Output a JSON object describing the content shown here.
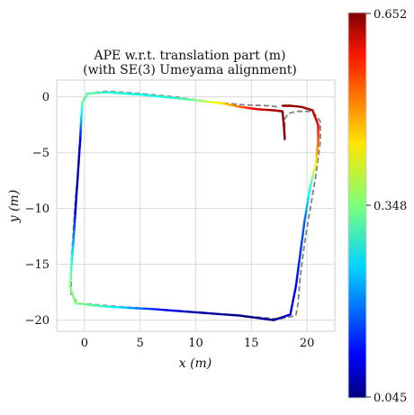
{
  "chart_data": {
    "type": "line",
    "title_line1": "APE w.r.t. translation part (m)",
    "title_line2": "(with SE(3) Umeyama alignment)",
    "xlabel": "x (m)",
    "ylabel": "y (m)",
    "xlim": [
      -2.5,
      22.5
    ],
    "ylim": [
      -21,
      1.5
    ],
    "x_ticks": [
      0,
      5,
      10,
      15,
      20
    ],
    "y_ticks": [
      0,
      -5,
      -10,
      -15,
      -20
    ],
    "x_tick_labels": [
      "0",
      "5",
      "10",
      "15",
      "20"
    ],
    "y_tick_labels": [
      "0",
      "−5",
      "−10",
      "−15",
      "−20"
    ],
    "grid": true,
    "colormap": "jet",
    "colorbar": {
      "min": 0.045,
      "mid": 0.348,
      "max": 0.652,
      "labels": [
        "0.652",
        "0.348",
        "0.045"
      ]
    },
    "reference_style": {
      "color": "#808080",
      "dash": "dashed"
    },
    "reference": [
      [
        18.0,
        -3.5
      ],
      [
        18.0,
        -2.0
      ],
      [
        18.3,
        -1.5
      ],
      [
        19.0,
        -1.3
      ],
      [
        20.5,
        -1.3
      ],
      [
        21.2,
        -2.2
      ],
      [
        21.2,
        -4.0
      ],
      [
        20.8,
        -7.0
      ],
      [
        20.3,
        -10.0
      ],
      [
        19.8,
        -13.0
      ],
      [
        19.4,
        -16.0
      ],
      [
        19.2,
        -18.5
      ],
      [
        19.0,
        -19.6
      ],
      [
        17.5,
        -19.9
      ],
      [
        14.0,
        -19.6
      ],
      [
        10.0,
        -19.3
      ],
      [
        6.0,
        -19.0
      ],
      [
        2.0,
        -18.7
      ],
      [
        -0.5,
        -18.5
      ],
      [
        -1.2,
        -17.8
      ],
      [
        -1.2,
        -15.0
      ],
      [
        -1.0,
        -12.0
      ],
      [
        -0.8,
        -9.0
      ],
      [
        -0.5,
        -6.0
      ],
      [
        -0.3,
        -3.0
      ],
      [
        -0.2,
        -0.5
      ],
      [
        0.2,
        0.3
      ],
      [
        2.0,
        0.5
      ],
      [
        5.0,
        0.3
      ],
      [
        8.0,
        0.0
      ],
      [
        11.0,
        -0.4
      ],
      [
        14.0,
        -0.7
      ],
      [
        16.5,
        -0.8
      ],
      [
        17.5,
        -0.9
      ]
    ],
    "estimate": [
      [
        18.0,
        -3.8,
        0.64
      ],
      [
        17.9,
        -2.3,
        0.64
      ],
      [
        17.8,
        -1.3,
        0.64
      ],
      [
        17.0,
        -1.2,
        0.63
      ],
      [
        15.5,
        -1.1,
        0.6
      ],
      [
        14.0,
        -0.9,
        0.52
      ],
      [
        12.5,
        -0.6,
        0.45
      ],
      [
        10.0,
        -0.3,
        0.35
      ],
      [
        8.0,
        -0.1,
        0.3
      ],
      [
        5.0,
        0.2,
        0.28
      ],
      [
        2.0,
        0.4,
        0.3
      ],
      [
        0.3,
        0.3,
        0.33
      ],
      [
        -0.2,
        -0.5,
        0.33
      ],
      [
        -0.3,
        -2.0,
        0.25
      ],
      [
        -0.4,
        -4.0,
        0.1
      ],
      [
        -0.6,
        -7.0,
        0.06
      ],
      [
        -0.8,
        -10.0,
        0.1
      ],
      [
        -1.0,
        -13.0,
        0.22
      ],
      [
        -1.2,
        -15.5,
        0.32
      ],
      [
        -1.3,
        -17.0,
        0.35
      ],
      [
        -0.8,
        -18.5,
        0.35
      ],
      [
        2.0,
        -18.8,
        0.3
      ],
      [
        6.0,
        -19.0,
        0.15
      ],
      [
        10.0,
        -19.3,
        0.07
      ],
      [
        14.0,
        -19.6,
        0.05
      ],
      [
        17.0,
        -20.0,
        0.06
      ],
      [
        18.5,
        -19.5,
        0.1
      ],
      [
        19.0,
        -17.0,
        0.12
      ],
      [
        19.4,
        -14.0,
        0.15
      ],
      [
        19.8,
        -11.0,
        0.18
      ],
      [
        20.3,
        -8.0,
        0.3
      ],
      [
        20.8,
        -6.0,
        0.42
      ],
      [
        21.0,
        -4.0,
        0.52
      ],
      [
        21.0,
        -2.5,
        0.58
      ],
      [
        20.5,
        -1.2,
        0.62
      ],
      [
        19.5,
        -0.9,
        0.64
      ],
      [
        18.5,
        -0.8,
        0.64
      ],
      [
        17.8,
        -0.8,
        0.64
      ]
    ]
  }
}
